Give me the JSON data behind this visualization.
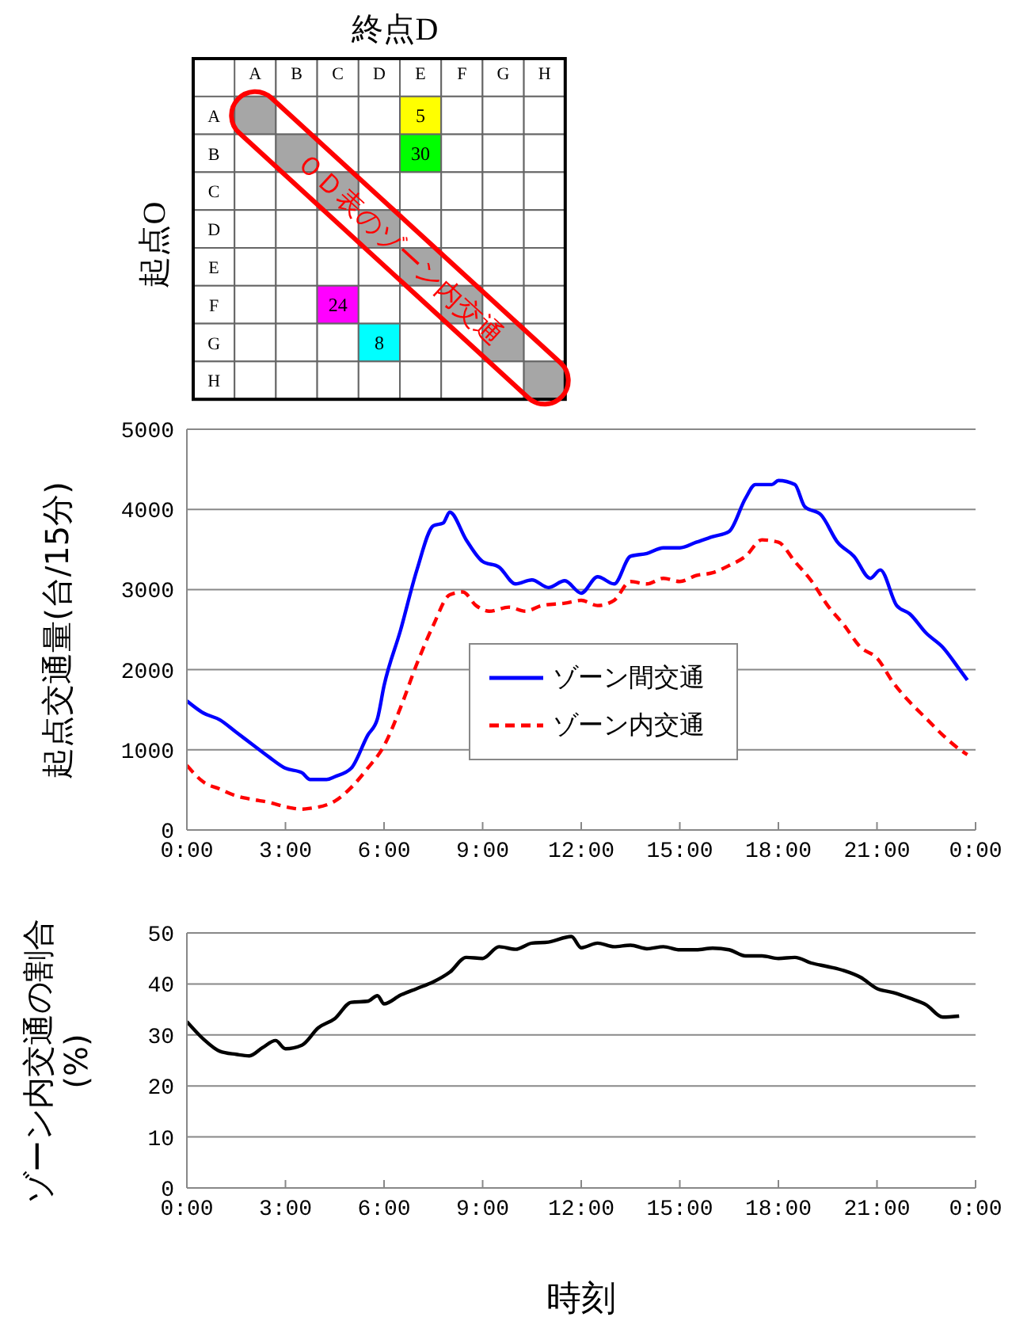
{
  "chart_data": [
    {
      "type": "heatmap",
      "title": "終点D",
      "ylabel": "起点O",
      "categories": [
        "A",
        "B",
        "C",
        "D",
        "E",
        "F",
        "G",
        "H"
      ],
      "y_categories": [
        "A",
        "B",
        "C",
        "D",
        "E",
        "F",
        "G",
        "H"
      ],
      "cells": [
        [
          null,
          null,
          null,
          null,
          5,
          null,
          null,
          null
        ],
        [
          null,
          null,
          null,
          null,
          30,
          null,
          null,
          null
        ],
        [
          null,
          null,
          null,
          null,
          null,
          null,
          null,
          null
        ],
        [
          null,
          null,
          null,
          null,
          null,
          null,
          null,
          null
        ],
        [
          null,
          null,
          null,
          null,
          null,
          null,
          null,
          null
        ],
        [
          null,
          null,
          24,
          null,
          null,
          null,
          null,
          null
        ],
        [
          null,
          null,
          null,
          8,
          null,
          null,
          null,
          null
        ],
        [
          null,
          null,
          null,
          null,
          null,
          null,
          null,
          null
        ]
      ],
      "colors": [
        [
          "#a6a6a6",
          null,
          null,
          null,
          "#ffff00",
          null,
          null,
          null
        ],
        [
          null,
          "#a6a6a6",
          null,
          null,
          "#00ff00",
          null,
          null,
          null
        ],
        [
          null,
          null,
          "#a6a6a6",
          null,
          null,
          null,
          null,
          null
        ],
        [
          null,
          null,
          null,
          "#a6a6a6",
          null,
          null,
          null,
          null
        ],
        [
          null,
          null,
          null,
          null,
          "#a6a6a6",
          null,
          null,
          null
        ],
        [
          null,
          null,
          "#ff00ff",
          null,
          null,
          "#a6a6a6",
          null,
          null
        ],
        [
          null,
          null,
          null,
          "#00ffff",
          null,
          null,
          "#a6a6a6",
          null
        ],
        [
          null,
          null,
          null,
          null,
          null,
          null,
          null,
          "#a6a6a6"
        ]
      ],
      "annotations": [
        "ＯＤ表のゾーン内交通"
      ],
      "data_labels": true
    },
    {
      "type": "line",
      "ylabel": "起点交通量(台/15分)",
      "xlim": [
        0,
        24
      ],
      "ylim": [
        0,
        5000
      ],
      "yticks": [
        0,
        1000,
        2000,
        3000,
        4000,
        5000
      ],
      "xticks": [
        {
          "value": 0,
          "label": "0:00"
        },
        {
          "value": 3,
          "label": "3:00"
        },
        {
          "value": 6,
          "label": "6:00"
        },
        {
          "value": 9,
          "label": "9:00"
        },
        {
          "value": 12,
          "label": "12:00"
        },
        {
          "value": 15,
          "label": "15:00"
        },
        {
          "value": 18,
          "label": "18:00"
        },
        {
          "value": 21,
          "label": "21:00"
        },
        {
          "value": 24,
          "label": "0:00"
        }
      ],
      "grid": "y",
      "legend": "center",
      "marker": "none",
      "series": [
        {
          "name": "ゾーン間交通",
          "color": "#0000ff",
          "line_style": "solid",
          "x": [
            0,
            0.5,
            1,
            1.5,
            2,
            2.5,
            3,
            3.5,
            3.75,
            4.25,
            4.5,
            5,
            5.5,
            5.8,
            6,
            6.5,
            7,
            7.5,
            7.8,
            8,
            8.5,
            9,
            9.5,
            10,
            10.5,
            11,
            11.5,
            12,
            12.5,
            13,
            13.5,
            14,
            14.5,
            15,
            15.5,
            16,
            16.5,
            17,
            17.3,
            17.8,
            18,
            18.5,
            18.8,
            19.3,
            19.8,
            20.3,
            20.8,
            21.1,
            21.6,
            22,
            22.5,
            23,
            23.5,
            23.75
          ],
          "values": [
            1610,
            1460,
            1375,
            1220,
            1065,
            910,
            770,
            715,
            630,
            630,
            665,
            770,
            1180,
            1390,
            1800,
            2490,
            3245,
            3795,
            3830,
            3965,
            3620,
            3350,
            3280,
            3070,
            3120,
            3025,
            3110,
            2955,
            3160,
            3070,
            3415,
            3450,
            3520,
            3520,
            3590,
            3660,
            3725,
            4140,
            4310,
            4310,
            4360,
            4310,
            4035,
            3930,
            3590,
            3415,
            3140,
            3245,
            2800,
            2695,
            2455,
            2280,
            2010,
            1870
          ]
        },
        {
          "name": "ゾーン内交通",
          "color": "#ff0000",
          "line_style": "dashed",
          "x": [
            0,
            0.5,
            1,
            1.5,
            2,
            2.5,
            3,
            3.5,
            3.75,
            4.5,
            5,
            5.5,
            6,
            6.5,
            7,
            7.5,
            8,
            8.4,
            8.8,
            9.2,
            9.8,
            10.3,
            10.8,
            11.5,
            12,
            12.5,
            13,
            13.5,
            14,
            14.5,
            15,
            15.5,
            16,
            16.5,
            17,
            17.5,
            18,
            18.5,
            19,
            19.5,
            20,
            20.5,
            21,
            21.5,
            22,
            22.5,
            23,
            23.5,
            23.75
          ],
          "values": [
            805,
            600,
            510,
            425,
            380,
            345,
            290,
            260,
            270,
            360,
            530,
            770,
            1050,
            1525,
            2075,
            2555,
            2935,
            2970,
            2800,
            2730,
            2780,
            2730,
            2800,
            2830,
            2865,
            2800,
            2865,
            3100,
            3070,
            3140,
            3100,
            3175,
            3210,
            3300,
            3415,
            3620,
            3590,
            3350,
            3110,
            2800,
            2555,
            2280,
            2145,
            1835,
            1595,
            1390,
            1185,
            1010,
            940
          ]
        }
      ]
    },
    {
      "type": "line",
      "ylabel": "ゾーン内交通の割合(%)",
      "xlabel": "時刻",
      "xlim": [
        0,
        24
      ],
      "ylim": [
        0,
        50
      ],
      "yticks": [
        0,
        10,
        20,
        30,
        40,
        50
      ],
      "xticks": [
        {
          "value": 0,
          "label": "0:00"
        },
        {
          "value": 3,
          "label": "3:00"
        },
        {
          "value": 6,
          "label": "6:00"
        },
        {
          "value": 9,
          "label": "9:00"
        },
        {
          "value": 12,
          "label": "12:00"
        },
        {
          "value": 15,
          "label": "15:00"
        },
        {
          "value": 18,
          "label": "18:00"
        },
        {
          "value": 21,
          "label": "21:00"
        },
        {
          "value": 24,
          "label": "0:00"
        }
      ],
      "grid": "y",
      "marker": "none",
      "series": [
        {
          "color": "#000000",
          "line_style": "solid",
          "x": [
            0,
            0.5,
            1,
            1.5,
            1.9,
            2.3,
            2.7,
            3,
            3.5,
            4,
            4.5,
            5,
            5.5,
            5.8,
            6,
            6.5,
            7,
            7.5,
            8,
            8.5,
            9,
            9.5,
            10,
            10.5,
            11,
            11.7,
            12,
            12.5,
            13,
            13.5,
            14,
            14.5,
            15,
            15.5,
            16,
            16.5,
            17,
            17.5,
            18,
            18.5,
            19,
            19.5,
            20,
            20.5,
            21,
            21.5,
            22,
            22.5,
            23,
            23.5
          ],
          "values": [
            32.6,
            29.2,
            26.8,
            26.2,
            25.9,
            27.5,
            28.9,
            27.3,
            28.0,
            31.4,
            33.2,
            36.4,
            36.6,
            37.7,
            36.1,
            37.8,
            39.1,
            40.4,
            42.3,
            45.2,
            45.0,
            47.3,
            46.8,
            48.0,
            48.2,
            49.3,
            47.1,
            48.0,
            47.3,
            47.6,
            46.9,
            47.3,
            46.7,
            46.7,
            47.0,
            46.7,
            45.5,
            45.5,
            45.0,
            45.2,
            44.1,
            43.4,
            42.6,
            41.3,
            39.1,
            38.3,
            37.2,
            35.9,
            33.5,
            33.7
          ]
        }
      ]
    }
  ]
}
